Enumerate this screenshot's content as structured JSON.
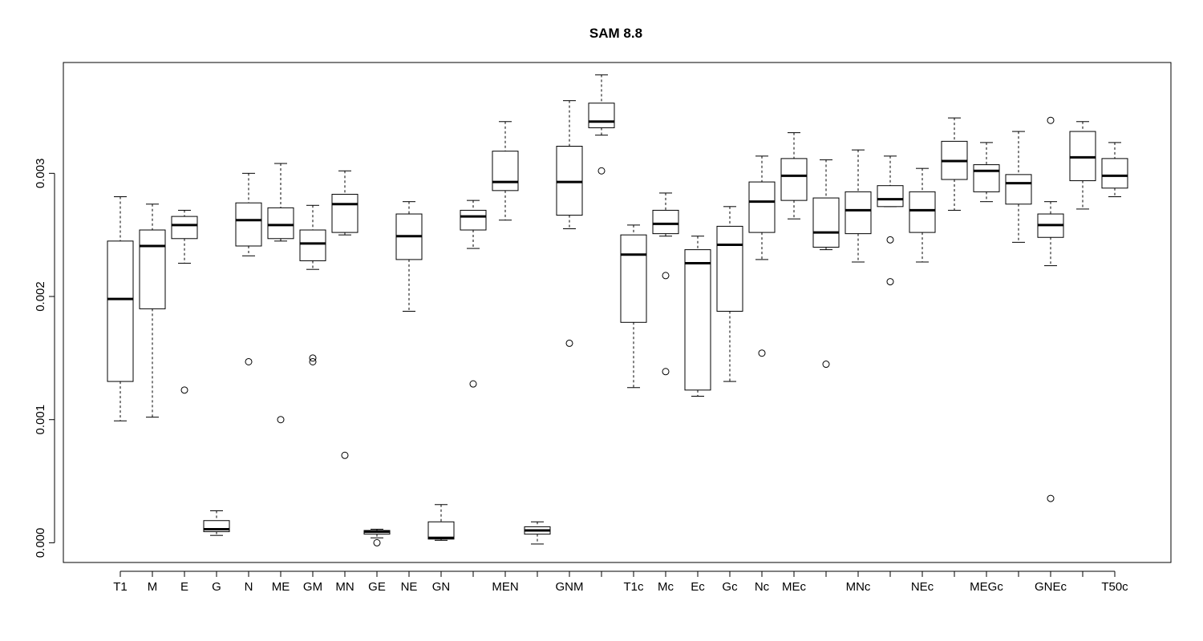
{
  "chart_data": {
    "type": "boxplot",
    "title": "SAM 8.8",
    "xlabel": "",
    "ylabel": "",
    "ylim": [
      -0.00016,
      0.0039
    ],
    "y_ticks": [
      0.0,
      0.001,
      0.002,
      0.003
    ],
    "y_tick_labels": [
      "0.000",
      "0.001",
      "0.002",
      "0.003"
    ],
    "grid": false,
    "boxes": [
      {
        "label": "T1",
        "whisker_low": 0.00099,
        "q1": 0.00131,
        "median": 0.00198,
        "q3": 0.00245,
        "whisker_high": 0.00281,
        "outliers": []
      },
      {
        "label": "M",
        "whisker_low": 0.00102,
        "q1": 0.0019,
        "median": 0.00241,
        "q3": 0.00254,
        "whisker_high": 0.00275,
        "outliers": []
      },
      {
        "label": "E",
        "whisker_low": 0.00227,
        "q1": 0.00247,
        "median": 0.00258,
        "q3": 0.00265,
        "whisker_high": 0.0027,
        "outliers": [
          0.00124
        ]
      },
      {
        "label": "G",
        "whisker_low": 6e-05,
        "q1": 9e-05,
        "median": 0.00011,
        "q3": 0.00018,
        "whisker_high": 0.00026,
        "outliers": []
      },
      {
        "label": "N",
        "whisker_low": 0.00233,
        "q1": 0.00241,
        "median": 0.00262,
        "q3": 0.00276,
        "whisker_high": 0.003,
        "outliers": [
          0.00147
        ]
      },
      {
        "label": "ME",
        "whisker_low": 0.00245,
        "q1": 0.00247,
        "median": 0.00258,
        "q3": 0.00272,
        "whisker_high": 0.00308,
        "outliers": [
          0.001
        ]
      },
      {
        "label": "GM",
        "whisker_low": 0.00222,
        "q1": 0.00229,
        "median": 0.00243,
        "q3": 0.00254,
        "whisker_high": 0.00274,
        "outliers": [
          0.0015,
          0.00147
        ]
      },
      {
        "label": "MN",
        "whisker_low": 0.0025,
        "q1": 0.00252,
        "median": 0.00275,
        "q3": 0.00283,
        "whisker_high": 0.00302,
        "outliers": [
          0.00071
        ]
      },
      {
        "label": "GE",
        "whisker_low": 4e-05,
        "q1": 7e-05,
        "median": 9e-05,
        "q3": 0.0001,
        "whisker_high": 0.00011,
        "outliers": [
          0.0
        ]
      },
      {
        "label": "NE",
        "whisker_low": 0.00188,
        "q1": 0.0023,
        "median": 0.00249,
        "q3": 0.00267,
        "whisker_high": 0.00277,
        "outliers": []
      },
      {
        "label": "GN",
        "whisker_low": 2e-05,
        "q1": 3e-05,
        "median": 4e-05,
        "q3": 0.00017,
        "whisker_high": 0.00031,
        "outliers": []
      },
      {
        "label": "",
        "whisker_low": 0.00239,
        "q1": 0.00254,
        "median": 0.00265,
        "q3": 0.0027,
        "whisker_high": 0.00278,
        "outliers": [
          0.00129
        ]
      },
      {
        "label": "MEN",
        "whisker_low": 0.00262,
        "q1": 0.00286,
        "median": 0.00293,
        "q3": 0.00318,
        "whisker_high": 0.00342,
        "outliers": []
      },
      {
        "label": "",
        "whisker_low": -1e-05,
        "q1": 7e-05,
        "median": 0.0001,
        "q3": 0.00013,
        "whisker_high": 0.00017,
        "outliers": []
      },
      {
        "label": "GNM",
        "whisker_low": 0.00255,
        "q1": 0.00266,
        "median": 0.00293,
        "q3": 0.00322,
        "whisker_high": 0.00359,
        "outliers": [
          0.00162
        ]
      },
      {
        "label": "",
        "whisker_low": 0.00331,
        "q1": 0.00337,
        "median": 0.00342,
        "q3": 0.00357,
        "whisker_high": 0.0038,
        "outliers": [
          0.00302
        ]
      },
      {
        "label": "T1c",
        "whisker_low": 0.00126,
        "q1": 0.00179,
        "median": 0.00234,
        "q3": 0.0025,
        "whisker_high": 0.00258,
        "outliers": []
      },
      {
        "label": "Mc",
        "whisker_low": 0.00249,
        "q1": 0.00251,
        "median": 0.00259,
        "q3": 0.0027,
        "whisker_high": 0.00284,
        "outliers": [
          0.00217,
          0.00139
        ]
      },
      {
        "label": "Ec",
        "whisker_low": 0.00119,
        "q1": 0.00124,
        "median": 0.00227,
        "q3": 0.00238,
        "whisker_high": 0.00249,
        "outliers": []
      },
      {
        "label": "Gc",
        "whisker_low": 0.00131,
        "q1": 0.00188,
        "median": 0.00242,
        "q3": 0.00257,
        "whisker_high": 0.00273,
        "outliers": []
      },
      {
        "label": "Nc",
        "whisker_low": 0.0023,
        "q1": 0.00252,
        "median": 0.00277,
        "q3": 0.00293,
        "whisker_high": 0.00314,
        "outliers": [
          0.00154
        ]
      },
      {
        "label": "MEc",
        "whisker_low": 0.00263,
        "q1": 0.00278,
        "median": 0.00298,
        "q3": 0.00312,
        "whisker_high": 0.00333,
        "outliers": []
      },
      {
        "label": "",
        "whisker_low": 0.00238,
        "q1": 0.0024,
        "median": 0.00252,
        "q3": 0.0028,
        "whisker_high": 0.00311,
        "outliers": [
          0.00145
        ]
      },
      {
        "label": "MNc",
        "whisker_low": 0.00228,
        "q1": 0.00251,
        "median": 0.0027,
        "q3": 0.00285,
        "whisker_high": 0.00319,
        "outliers": []
      },
      {
        "label": "",
        "whisker_low": 0.00273,
        "q1": 0.00273,
        "median": 0.00279,
        "q3": 0.0029,
        "whisker_high": 0.00314,
        "outliers": [
          0.00246,
          0.00212
        ]
      },
      {
        "label": "NEc",
        "whisker_low": 0.00228,
        "q1": 0.00252,
        "median": 0.0027,
        "q3": 0.00285,
        "whisker_high": 0.00304,
        "outliers": []
      },
      {
        "label": "",
        "whisker_low": 0.0027,
        "q1": 0.00295,
        "median": 0.0031,
        "q3": 0.00326,
        "whisker_high": 0.00345,
        "outliers": []
      },
      {
        "label": "MEGc",
        "whisker_low": 0.00277,
        "q1": 0.00285,
        "median": 0.00302,
        "q3": 0.00307,
        "whisker_high": 0.00325,
        "outliers": []
      },
      {
        "label": "",
        "whisker_low": 0.00244,
        "q1": 0.00275,
        "median": 0.00292,
        "q3": 0.00299,
        "whisker_high": 0.00334,
        "outliers": []
      },
      {
        "label": "GNEc",
        "whisker_low": 0.00225,
        "q1": 0.00248,
        "median": 0.00258,
        "q3": 0.00267,
        "whisker_high": 0.00277,
        "outliers": [
          0.00343,
          0.00036
        ]
      },
      {
        "label": "",
        "whisker_low": 0.00271,
        "q1": 0.00294,
        "median": 0.00313,
        "q3": 0.00334,
        "whisker_high": 0.00342,
        "outliers": []
      },
      {
        "label": "T50c",
        "whisker_low": 0.00281,
        "q1": 0.00288,
        "median": 0.00298,
        "q3": 0.00312,
        "whisker_high": 0.00325,
        "outliers": []
      }
    ]
  }
}
